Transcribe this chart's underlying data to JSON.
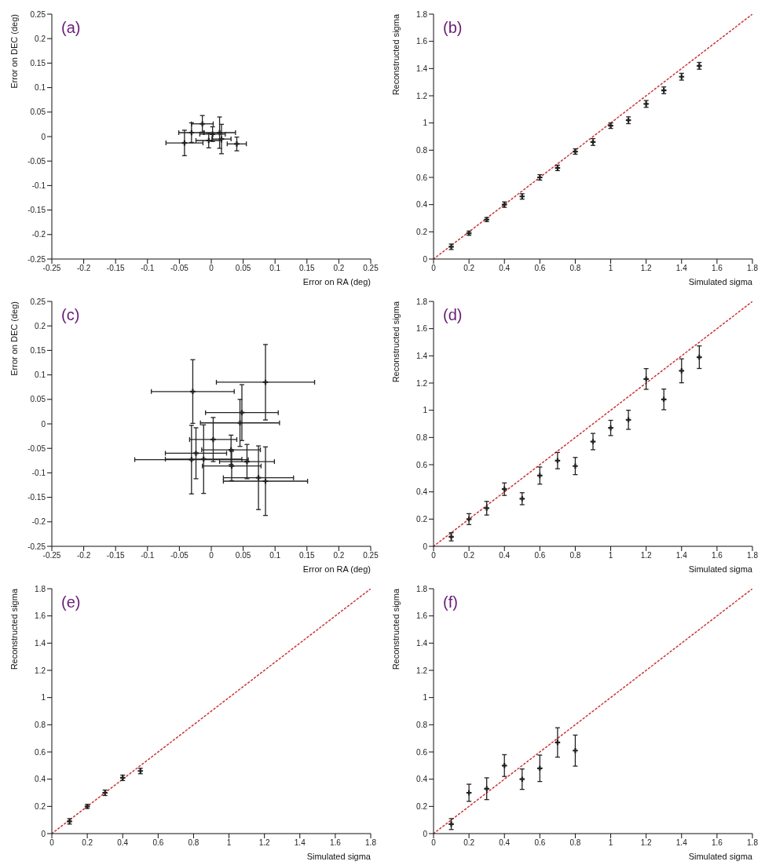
{
  "chart_data": [
    {
      "type": "scatter",
      "xlabel": "Error on RA (deg)",
      "ylabel": "Error on DEC (deg)",
      "annotations": [
        "(a)"
      ],
      "xlim": [
        -0.25,
        0.25
      ],
      "ylim": [
        -0.25,
        0.25
      ],
      "xticks": [
        -0.25,
        -0.2,
        -0.15,
        -0.1,
        -0.05,
        0,
        0.05,
        0.1,
        0.15,
        0.2,
        0.25
      ],
      "yticks": [
        -0.25,
        -0.2,
        -0.15,
        -0.1,
        -0.05,
        0,
        0.05,
        0.1,
        0.15,
        0.2,
        0.25
      ],
      "series": [
        {
          "type": "scatter",
          "color": "#222222",
          "marker": "cross",
          "x": [
            -0.042,
            -0.031,
            -0.014,
            0.002,
            0.013,
            -0.004,
            0.04,
            0.016
          ],
          "values": [
            -0.013,
            0.008,
            0.026,
            0.005,
            0.008,
            -0.008,
            -0.015,
            -0.005
          ],
          "errors": [
            0.026,
            0.02,
            0.017,
            0.015,
            0.032,
            0.015,
            0.014,
            0.03
          ],
          "xerrors": [
            0.029,
            0.02,
            0.017,
            0.02,
            0.025,
            0.02,
            0.015,
            0.015
          ]
        }
      ]
    },
    {
      "type": "scatter",
      "xlabel": "Simulated sigma",
      "ylabel": "Reconstructed sigma",
      "annotations": [
        "(b)"
      ],
      "xlim": [
        0,
        1.8
      ],
      "ylim": [
        0,
        1.8
      ],
      "xticks": [
        0,
        0.2,
        0.4,
        0.6,
        0.8,
        1,
        1.2,
        1.4,
        1.6,
        1.8
      ],
      "yticks": [
        0,
        0.2,
        0.4,
        0.6,
        0.8,
        1,
        1.2,
        1.4,
        1.6,
        1.8
      ],
      "series": [
        {
          "type": "line",
          "color": "#cc3333",
          "line_style": "dotted",
          "x": [
            0,
            1.8
          ],
          "values": [
            0,
            1.8
          ]
        },
        {
          "type": "scatter",
          "color": "#222222",
          "marker": "cross",
          "x": [
            0.1,
            0.2,
            0.3,
            0.4,
            0.5,
            0.6,
            0.7,
            0.8,
            0.9,
            1,
            1.1,
            1.2,
            1.3,
            1.4,
            1.5
          ],
          "values": [
            0.09,
            0.19,
            0.29,
            0.4,
            0.46,
            0.6,
            0.67,
            0.79,
            0.86,
            0.98,
            1.02,
            1.14,
            1.24,
            1.34,
            1.42
          ],
          "errors": [
            0.02,
            0.015,
            0.015,
            0.02,
            0.02,
            0.02,
            0.02,
            0.02,
            0.025,
            0.02,
            0.025,
            0.025,
            0.025,
            0.025,
            0.025
          ]
        }
      ]
    },
    {
      "type": "scatter",
      "xlabel": "Error on RA (deg)",
      "ylabel": "Error on DEC (deg)",
      "annotations": [
        "(c)"
      ],
      "xlim": [
        -0.25,
        0.25
      ],
      "ylim": [
        -0.25,
        0.25
      ],
      "xticks": [
        -0.25,
        -0.2,
        -0.15,
        -0.1,
        -0.05,
        0,
        0.05,
        0.1,
        0.15,
        0.2,
        0.25
      ],
      "yticks": [
        -0.25,
        -0.2,
        -0.15,
        -0.1,
        -0.05,
        0,
        0.05,
        0.1,
        0.15,
        0.2,
        0.25
      ],
      "series": [
        {
          "type": "scatter",
          "color": "#222222",
          "marker": "cross",
          "x": [
            0.085,
            -0.029,
            0.048,
            0.045,
            -0.024,
            0.031,
            -0.031,
            0.032,
            0.056,
            0.085,
            0.074,
            0.003,
            -0.012
          ],
          "values": [
            0.085,
            0.066,
            0.023,
            0.002,
            -0.06,
            -0.053,
            -0.073,
            -0.086,
            -0.077,
            -0.117,
            -0.11,
            -0.032,
            -0.072
          ],
          "errors": [
            0.077,
            0.065,
            0.057,
            0.048,
            0.052,
            0.03,
            0.07,
            0.03,
            0.035,
            0.07,
            0.065,
            0.045,
            0.07
          ],
          "xerrors": [
            0.077,
            0.065,
            0.057,
            0.062,
            0.048,
            0.046,
            0.089,
            0.046,
            0.043,
            0.066,
            0.055,
            0.037,
            0.06
          ]
        }
      ]
    },
    {
      "type": "scatter",
      "xlabel": "Simulated sigma",
      "ylabel": "Reconstructed sigma",
      "annotations": [
        "(d)"
      ],
      "xlim": [
        0,
        1.8
      ],
      "ylim": [
        0,
        1.8
      ],
      "xticks": [
        0,
        0.2,
        0.4,
        0.6,
        0.8,
        1,
        1.2,
        1.4,
        1.6,
        1.8
      ],
      "yticks": [
        0,
        0.2,
        0.4,
        0.6,
        0.8,
        1,
        1.2,
        1.4,
        1.6,
        1.8
      ],
      "series": [
        {
          "type": "line",
          "color": "#cc3333",
          "line_style": "dotted",
          "x": [
            0,
            1.8
          ],
          "values": [
            0,
            1.8
          ]
        },
        {
          "type": "scatter",
          "color": "#222222",
          "marker": "cross",
          "x": [
            0.1,
            0.2,
            0.3,
            0.4,
            0.5,
            0.6,
            0.7,
            0.8,
            0.9,
            1,
            1.1,
            1.2,
            1.3,
            1.4,
            1.5
          ],
          "values": [
            0.07,
            0.2,
            0.28,
            0.42,
            0.35,
            0.52,
            0.63,
            0.59,
            0.77,
            0.87,
            0.93,
            1.23,
            1.08,
            1.29,
            1.39
          ],
          "errors": [
            0.03,
            0.04,
            0.05,
            0.046,
            0.044,
            0.063,
            0.06,
            0.063,
            0.06,
            0.056,
            0.07,
            0.076,
            0.076,
            0.088,
            0.083
          ]
        }
      ]
    },
    {
      "type": "scatter",
      "xlabel": "Simulated sigma",
      "ylabel": "Reconstructed sigma",
      "annotations": [
        "(e)"
      ],
      "xlim": [
        0,
        1.8
      ],
      "ylim": [
        0,
        1.8
      ],
      "xticks": [
        0,
        0.2,
        0.4,
        0.6,
        0.8,
        1,
        1.2,
        1.4,
        1.6,
        1.8
      ],
      "yticks": [
        0,
        0.2,
        0.4,
        0.6,
        0.8,
        1,
        1.2,
        1.4,
        1.6,
        1.8
      ],
      "series": [
        {
          "type": "line",
          "color": "#cc3333",
          "line_style": "dotted",
          "x": [
            0,
            1.8
          ],
          "values": [
            0,
            1.8
          ]
        },
        {
          "type": "scatter",
          "color": "#222222",
          "marker": "cross",
          "x": [
            0.1,
            0.2,
            0.3,
            0.4,
            0.5
          ],
          "values": [
            0.09,
            0.2,
            0.3,
            0.41,
            0.46
          ],
          "errors": [
            0.02,
            0.015,
            0.02,
            0.02,
            0.02
          ]
        }
      ]
    },
    {
      "type": "scatter",
      "xlabel": "Simulated sigma",
      "ylabel": "Reconstructed sigma",
      "annotations": [
        "(f)"
      ],
      "xlim": [
        0,
        1.8
      ],
      "ylim": [
        0,
        1.8
      ],
      "xticks": [
        0,
        0.2,
        0.4,
        0.6,
        0.8,
        1,
        1.2,
        1.4,
        1.6,
        1.8
      ],
      "yticks": [
        0,
        0.2,
        0.4,
        0.6,
        0.8,
        1,
        1.2,
        1.4,
        1.6,
        1.8
      ],
      "series": [
        {
          "type": "line",
          "color": "#cc3333",
          "line_style": "dotted",
          "x": [
            0,
            1.8
          ],
          "values": [
            0,
            1.8
          ]
        },
        {
          "type": "scatter",
          "color": "#222222",
          "marker": "cross",
          "x": [
            0.1,
            0.2,
            0.3,
            0.4,
            0.5,
            0.6,
            0.7,
            0.8
          ],
          "values": [
            0.07,
            0.3,
            0.33,
            0.5,
            0.4,
            0.48,
            0.67,
            0.61
          ],
          "errors": [
            0.04,
            0.063,
            0.08,
            0.08,
            0.075,
            0.097,
            0.108,
            0.114
          ]
        }
      ]
    }
  ]
}
